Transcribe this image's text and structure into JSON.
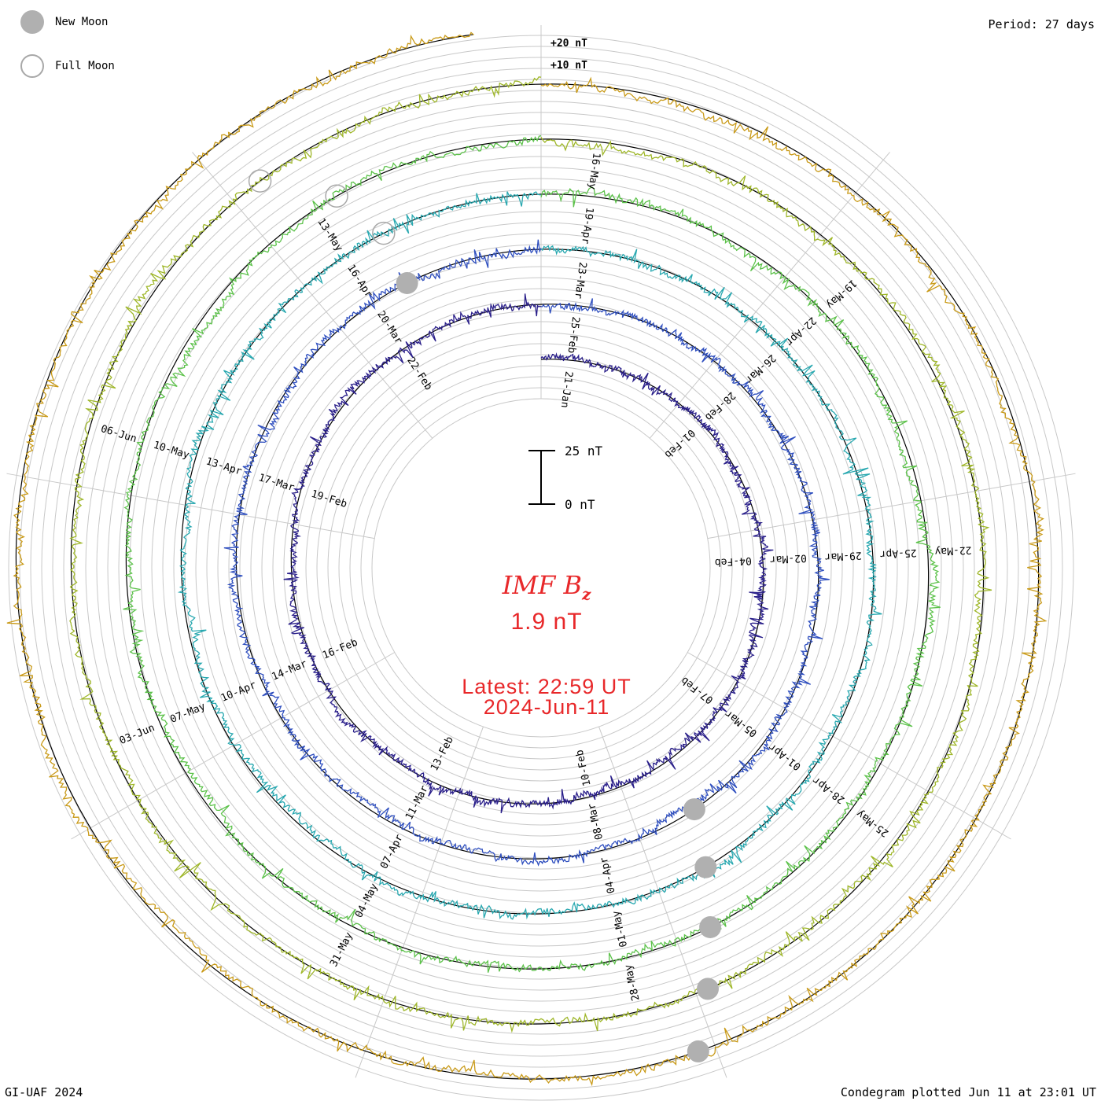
{
  "legend": {
    "new_moon_label": "New Moon",
    "full_moon_label": "Full Moon"
  },
  "period_label": "Period: 27 days",
  "scale_labels": {
    "outer": "+20 nT",
    "inner": "+10 nT"
  },
  "scale_bar": {
    "top_label": "25 nT",
    "bottom_label": "0 nT"
  },
  "title": {
    "main": "IMF B",
    "sub": "z"
  },
  "current_value": "1.9 nT",
  "latest": {
    "line1": "Latest: 22:59 UT",
    "line2": "2024-Jun-11"
  },
  "footer": {
    "left": "GI-UAF 2024",
    "right": "Condegram plotted Jun 11 at 23:01 UT"
  },
  "colors": {
    "text_accent": "#e8282a",
    "grid": "#c8c8c8",
    "baseline": "#000000",
    "moon_fill": "#b0b0b0",
    "rotations": [
      "#0a0a1e",
      "#2a1f8a",
      "#2f4fbf",
      "#28a8b0",
      "#5cc24a",
      "#9fb72a",
      "#c99a18",
      "#c45a14",
      "#b01410"
    ]
  },
  "chart_data": {
    "type": "polar-condegram",
    "parameter": "IMF Bz",
    "units": "nT",
    "period_days": 27,
    "rings": [
      {
        "rotation": 1,
        "date_labels": [
          "21-Jan",
          "01-Feb",
          "04-Feb",
          "07-Feb",
          "10-Feb",
          "13-Feb",
          "16-Feb",
          "19-Feb",
          "22-Feb"
        ]
      },
      {
        "rotation": 2,
        "date_labels": [
          "25-Feb",
          "28-Feb",
          "02-Mar",
          "05-Mar",
          "08-Mar",
          "11-Mar",
          "14-Mar",
          "17-Mar",
          "20-Mar"
        ]
      },
      {
        "rotation": 3,
        "date_labels": [
          "23-Mar",
          "26-Mar",
          "29-Mar",
          "01-Apr",
          "04-Apr",
          "07-Apr",
          "10-Apr",
          "13-Apr",
          "16-Apr"
        ]
      },
      {
        "rotation": 4,
        "date_labels": [
          "19-Apr",
          "22-Apr",
          "25-Apr",
          "28-Apr",
          "01-May",
          "04-May",
          "07-May",
          "10-May",
          "13-May"
        ]
      },
      {
        "rotation": 5,
        "date_labels": [
          "16-May",
          "19-May",
          "22-May",
          "25-May",
          "28-May",
          "31-May",
          "03-Jun",
          "06-Jun"
        ]
      },
      {
        "rotation": 6,
        "date_labels": []
      }
    ]
  }
}
